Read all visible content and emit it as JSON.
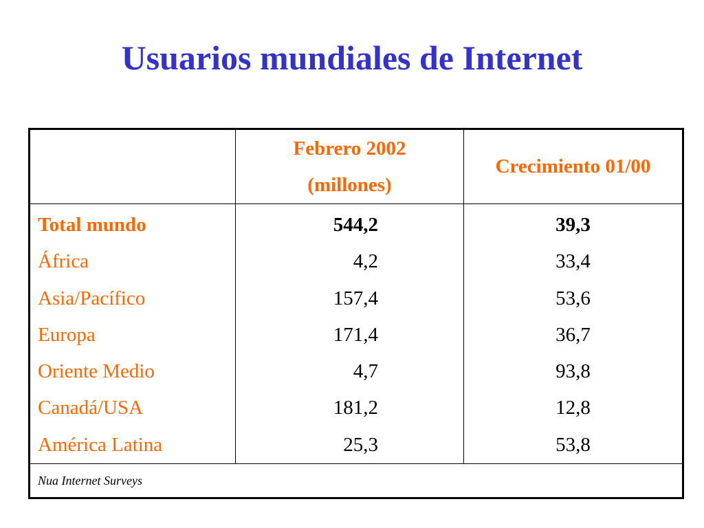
{
  "title": "Usuarios mundiales de Internet",
  "table": {
    "headers": {
      "region": "",
      "february_line1": "Febrero 2002",
      "february_line2": "(millones)",
      "growth": "Crecimiento 01/00"
    },
    "rows": [
      {
        "region": "Total mundo",
        "february": "544,2",
        "growth": "39,3"
      },
      {
        "region": "África",
        "february": "4,2",
        "growth": "33,4"
      },
      {
        "region": "Asia/Pacífico",
        "february": "157,4",
        "growth": "53,6"
      },
      {
        "region": "Europa",
        "february": "171,4",
        "growth": "36,7"
      },
      {
        "region": "Oriente Medio",
        "february": "4,7",
        "growth": "93,8"
      },
      {
        "region": "Canadá/USA",
        "february": "181,2",
        "growth": "12,8"
      },
      {
        "region": "América Latina",
        "february": "25,3",
        "growth": "53,8"
      }
    ],
    "source": "Nua Internet Surveys"
  },
  "colors": {
    "title": "#3333cc",
    "accent": "#ff6600",
    "text": "#000000",
    "border": "#000000"
  }
}
